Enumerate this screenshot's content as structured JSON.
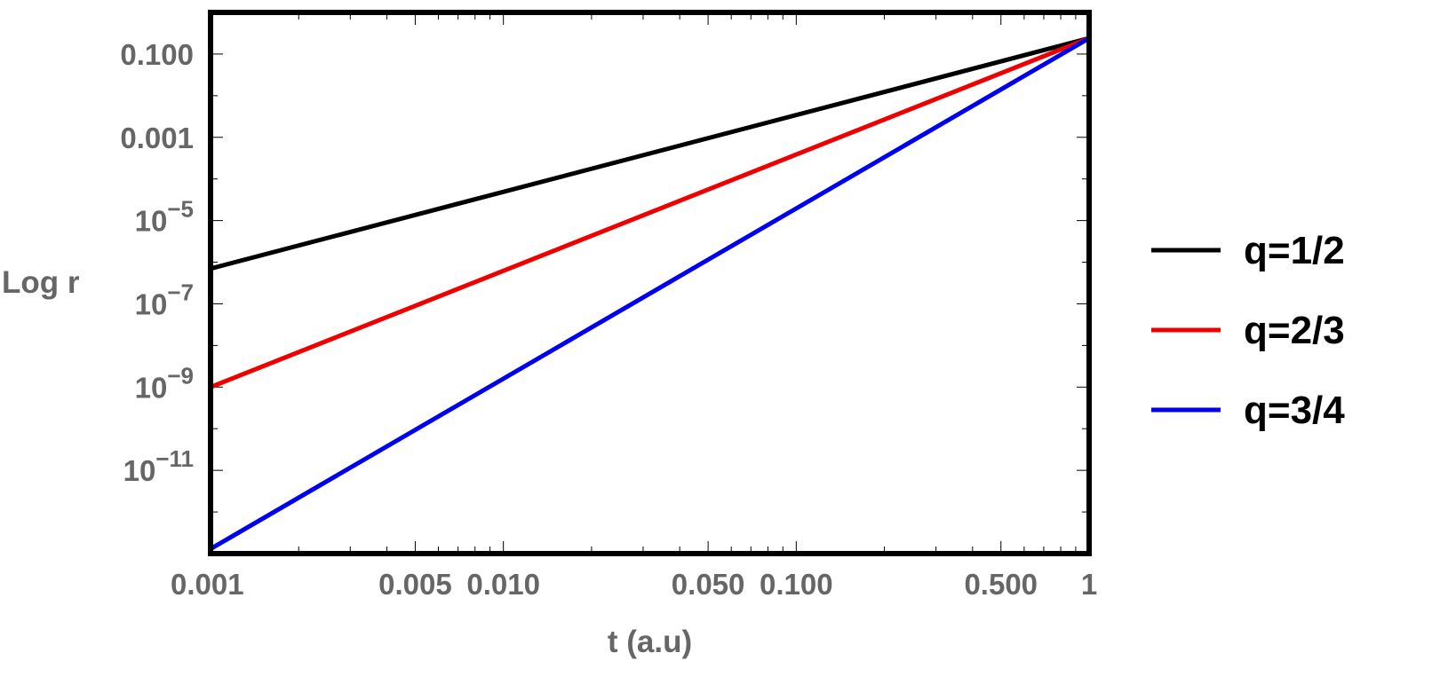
{
  "chart_data": {
    "type": "line",
    "xlabel": "t (a.u)",
    "ylabel": "Log r",
    "x_scale": "log",
    "y_scale": "log",
    "xlim": [
      0.001,
      1.0
    ],
    "ylim": [
      1e-13,
      1.0
    ],
    "x_ticks": [
      {
        "value": 0.001,
        "label": "0.001"
      },
      {
        "value": 0.005,
        "label": "0.005"
      },
      {
        "value": 0.01,
        "label": "0.010"
      },
      {
        "value": 0.05,
        "label": "0.050"
      },
      {
        "value": 0.1,
        "label": "0.100"
      },
      {
        "value": 0.5,
        "label": "0.500"
      },
      {
        "value": 1.0,
        "label": "1"
      }
    ],
    "y_ticks": [
      {
        "value": 0.1,
        "base": "0.100",
        "exp": ""
      },
      {
        "value": 0.001,
        "base": "0.001",
        "exp": ""
      },
      {
        "value": 1e-05,
        "base": "10",
        "exp": "−5"
      },
      {
        "value": 1e-07,
        "base": "10",
        "exp": "−7"
      },
      {
        "value": 1e-09,
        "base": "10",
        "exp": "−9"
      },
      {
        "value": 1e-11,
        "base": "10",
        "exp": "−11"
      }
    ],
    "series": [
      {
        "name": "q=1/2",
        "color": "#000000",
        "x": [
          0.001,
          1.0
        ],
        "y": [
          7e-07,
          0.24
        ]
      },
      {
        "name": "q=2/3",
        "color": "#ee0000",
        "x": [
          0.001,
          1.0
        ],
        "y": [
          1e-09,
          0.24
        ]
      },
      {
        "name": "q=3/4",
        "color": "#0000ee",
        "x": [
          0.001,
          1.0
        ],
        "y": [
          1.3e-13,
          0.24
        ]
      }
    ],
    "grid": false,
    "legend_position": "right"
  }
}
